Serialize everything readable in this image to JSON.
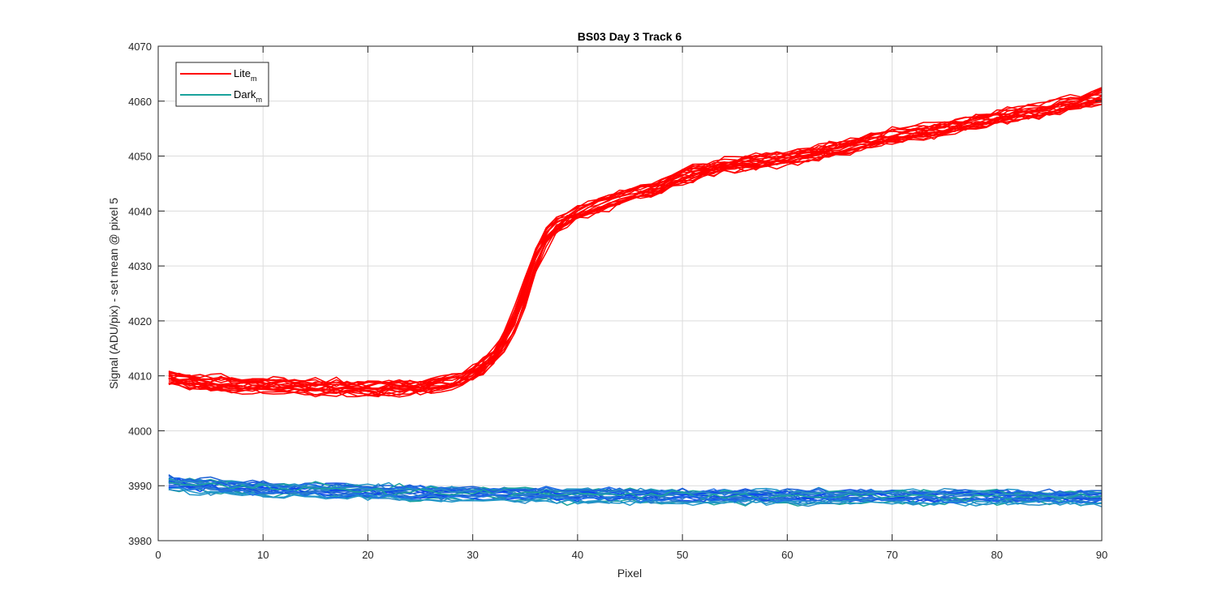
{
  "chart_data": {
    "type": "line",
    "title": "BS03 Day 3 Track 6",
    "xlabel": "Pixel",
    "ylabel": "Signal (ADU/pix) - set mean @ pixel 5",
    "xlim": [
      0,
      90
    ],
    "ylim": [
      3980,
      4070
    ],
    "xticks": [
      0,
      10,
      20,
      30,
      40,
      50,
      60,
      70,
      80,
      90
    ],
    "yticks": [
      3980,
      3990,
      4000,
      4010,
      4020,
      4030,
      4040,
      4050,
      4060,
      4070
    ],
    "grid": true,
    "legend_location": "top-left",
    "legend": [
      {
        "label": "Lite",
        "subscript": "m",
        "color": "#ff0000"
      },
      {
        "label": "Dark",
        "subscript": "m",
        "color": "#1aa39c"
      }
    ],
    "x_start": 1,
    "x_end": 90,
    "lite_mean_profile": [
      [
        1,
        4009.5
      ],
      [
        5,
        4008.5
      ],
      [
        10,
        4008.2
      ],
      [
        15,
        4007.9
      ],
      [
        20,
        4007.7
      ],
      [
        25,
        4007.9
      ],
      [
        28,
        4008.8
      ],
      [
        30,
        4010.5
      ],
      [
        32,
        4013.5
      ],
      [
        34,
        4020.0
      ],
      [
        35,
        4026.0
      ],
      [
        36,
        4032.0
      ],
      [
        37,
        4035.5
      ],
      [
        38,
        4037.5
      ],
      [
        40,
        4039.5
      ],
      [
        42,
        4041.0
      ],
      [
        45,
        4043.0
      ],
      [
        48,
        4044.5
      ],
      [
        50,
        4046.5
      ],
      [
        55,
        4048.5
      ],
      [
        60,
        4049.5
      ],
      [
        65,
        4051.5
      ],
      [
        70,
        4053.5
      ],
      [
        75,
        4055.0
      ],
      [
        80,
        4057.0
      ],
      [
        85,
        4058.5
      ],
      [
        90,
        4061.0
      ]
    ],
    "dark_mean_profile": [
      [
        1,
        3990.3
      ],
      [
        10,
        3989.3
      ],
      [
        20,
        3988.8
      ],
      [
        30,
        3988.4
      ],
      [
        40,
        3988.2
      ],
      [
        50,
        3988.0
      ],
      [
        60,
        3987.9
      ],
      [
        70,
        3987.9
      ],
      [
        80,
        3987.9
      ],
      [
        90,
        3987.7
      ]
    ],
    "lite_series_count": 20,
    "dark_series_count": 24,
    "lite_color": "#ff0000",
    "dark_colors": [
      "#0a3ff0",
      "#1450e0",
      "#1e63d6",
      "#2a78cc",
      "#2b8ec4",
      "#1aa39c",
      "#2196c8",
      "#1f6fe8"
    ]
  }
}
